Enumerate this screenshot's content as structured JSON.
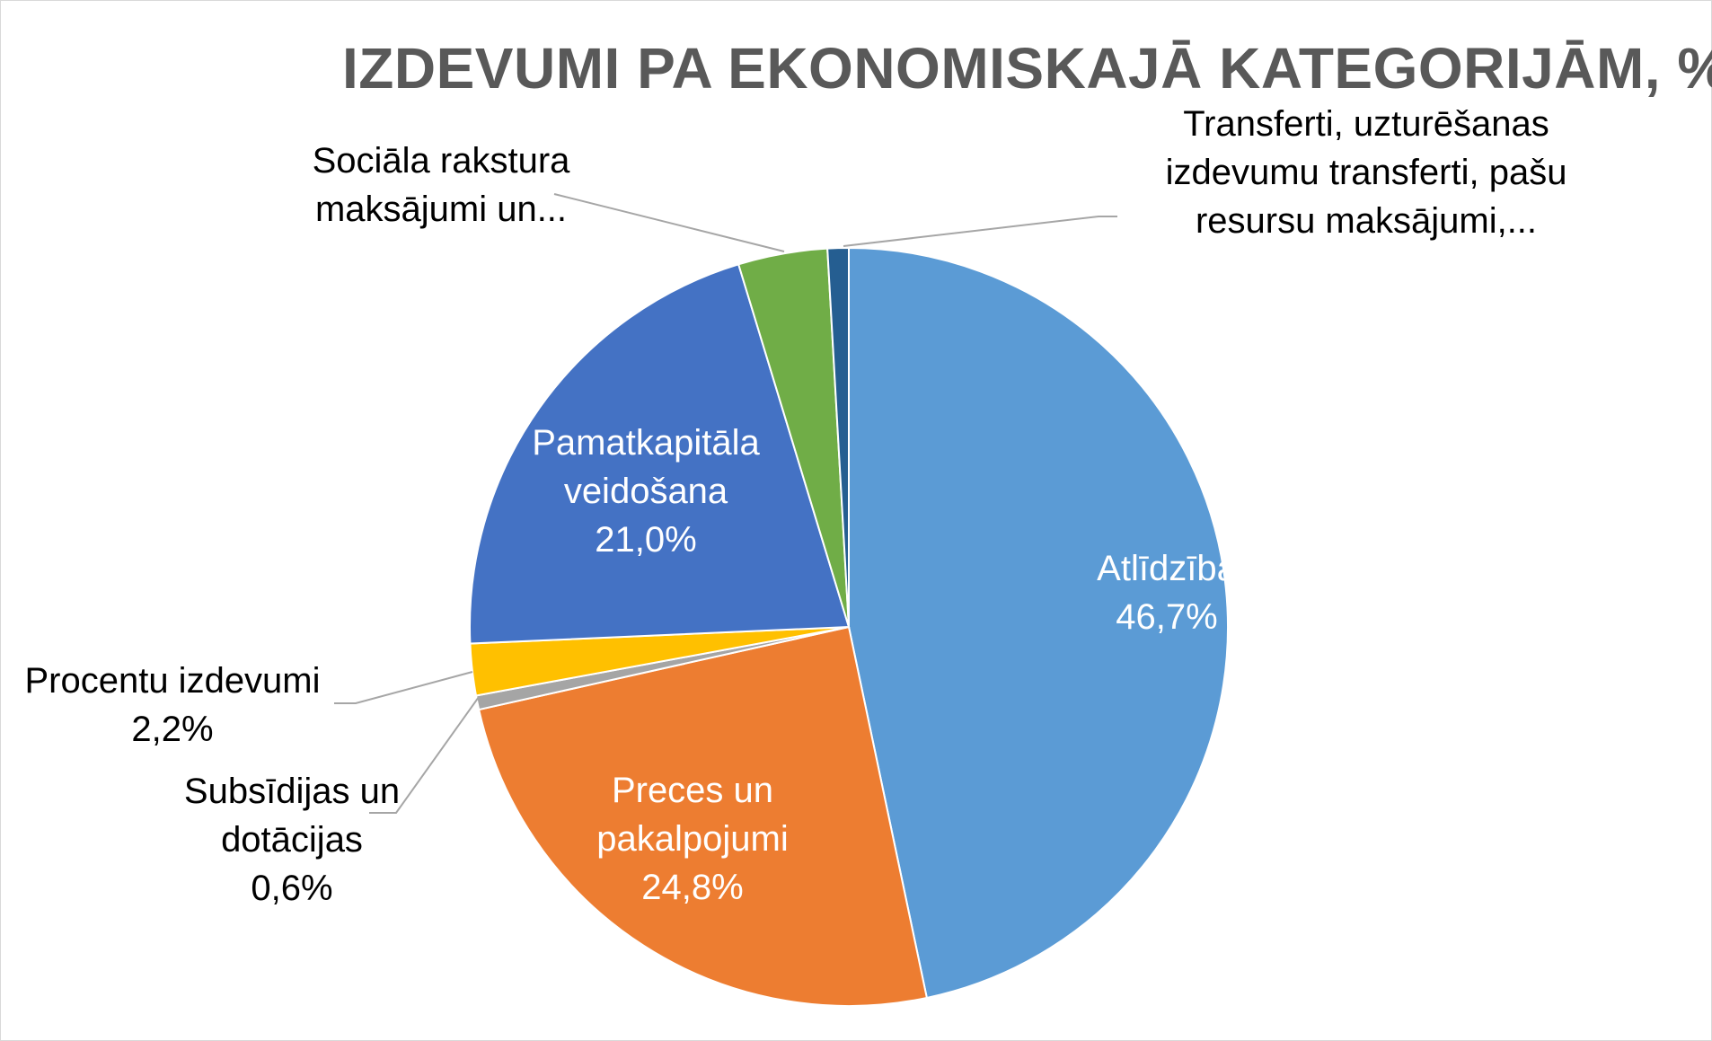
{
  "chart_data": {
    "type": "pie",
    "title": "IZDEVUMI PA EKONOMISKAJĀ KATEGORIJĀM, %",
    "slices": [
      {
        "name": "Atlīdzība",
        "value": 46.7,
        "value_label": "46,7%",
        "color": "#5B9BD5"
      },
      {
        "name": "Preces un pakalpojumi",
        "value": 24.8,
        "value_label": "24,8%",
        "color": "#ED7D31"
      },
      {
        "name": "Subsīdijas un dotācijas",
        "value": 0.6,
        "value_label": "0,6%",
        "color": "#A5A5A5"
      },
      {
        "name": "Procentu izdevumi",
        "value": 2.2,
        "value_label": "2,2%",
        "color": "#FFC000"
      },
      {
        "name": "Pamatkapitāla veidošana",
        "value": 21.0,
        "value_label": "21,0%",
        "color": "#4472C4"
      },
      {
        "name": "Sociāla rakstura maksājumi un...",
        "value": 3.8,
        "value_label": "",
        "color": "#70AD47"
      },
      {
        "name": "Transferti, uzturēšanas izdevumu transferti, pašu resursu maksājumi,...",
        "value": 0.9,
        "value_label": "",
        "color": "#255E91"
      }
    ],
    "labels": [
      {
        "slice": 0,
        "lines": [
          "Atlīdzība",
          "46,7%"
        ]
      },
      {
        "slice": 1,
        "lines": [
          "Preces un",
          "pakalpojumi",
          "24,8%"
        ]
      },
      {
        "slice": 2,
        "lines": [
          "Subsīdijas un",
          "dotācijas",
          "0,6%"
        ]
      },
      {
        "slice": 3,
        "lines": [
          "Procentu izdevumi",
          "2,2%"
        ]
      },
      {
        "slice": 4,
        "lines": [
          "Pamatkapitāla",
          "veidošana",
          "21,0%"
        ]
      },
      {
        "slice": 5,
        "lines": [
          "Sociāla rakstura",
          "maksājumi un..."
        ]
      },
      {
        "slice": 6,
        "lines": [
          "Transferti, uzturēšanas",
          "izdevumu transferti, pašu",
          "resursu maksājumi,..."
        ]
      }
    ],
    "legend": "none",
    "leader_line_color": "#A6A6A6"
  }
}
